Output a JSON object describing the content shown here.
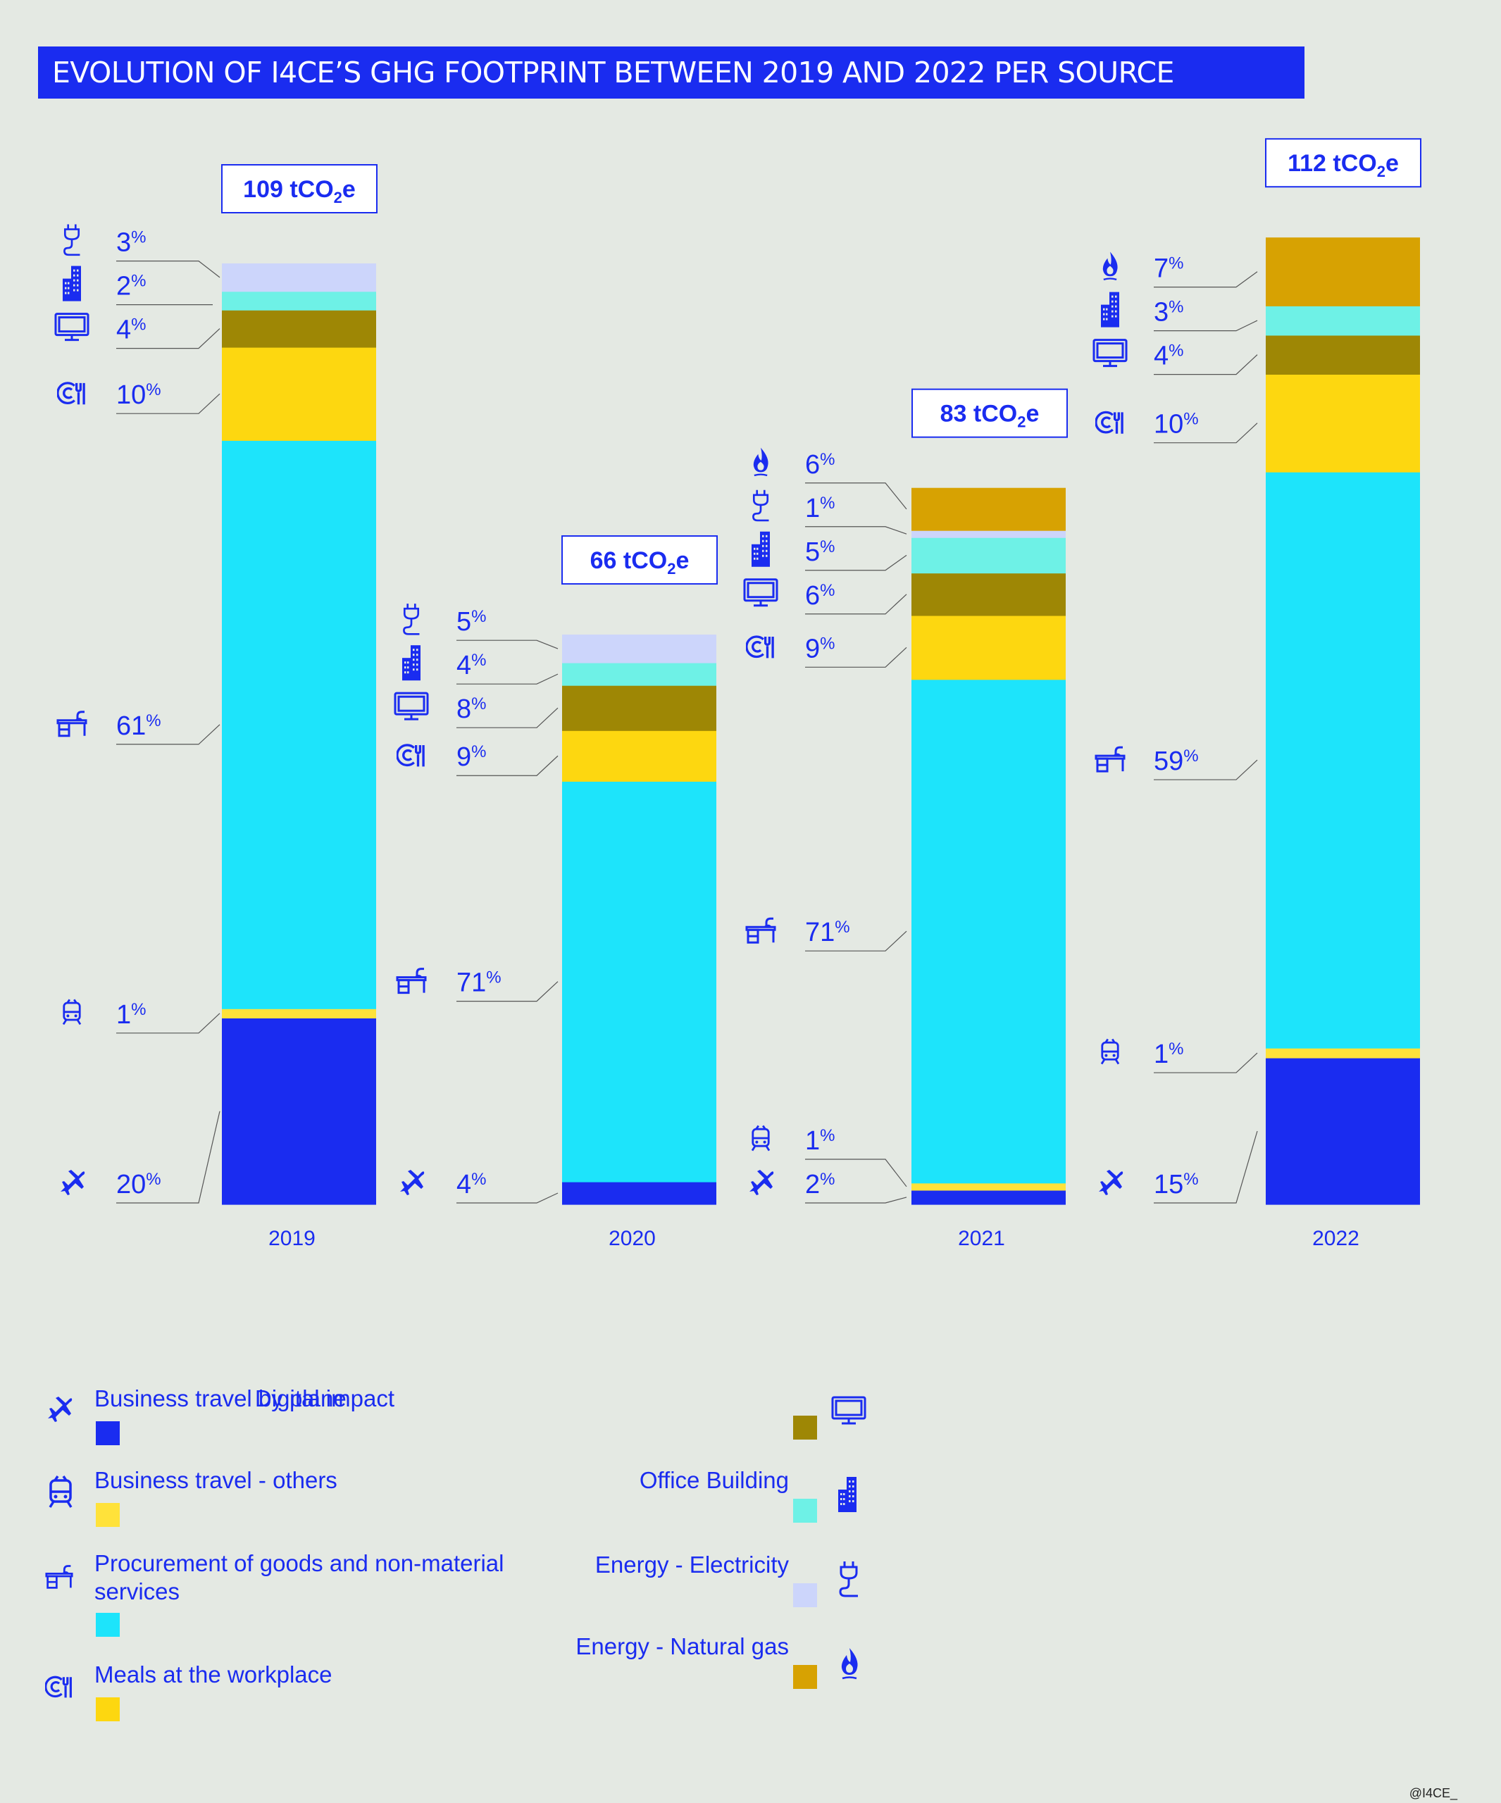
{
  "title": "EVOLUTION OF I4CE’S GHG FOOTPRINT BETWEEN 2019 AND 2022 PER SOURCE",
  "credit": "@I4CE_",
  "chart_data": {
    "type": "bar",
    "stacked": true,
    "unit": "%",
    "categories": [
      "2019",
      "2020",
      "2021",
      "2022"
    ],
    "totals": [
      {
        "prefix": "109 tCO",
        "sub": "2",
        "suffix": "e"
      },
      {
        "prefix": "66 tCO",
        "sub": "2",
        "suffix": "e"
      },
      {
        "prefix": "83 tCO",
        "sub": "2",
        "suffix": "e"
      },
      {
        "prefix": "112 tCO",
        "sub": "2",
        "suffix": "e"
      }
    ],
    "series": [
      {
        "name": "Business travel by plane",
        "color": "#1a2cf0",
        "icon": "plane-icon",
        "values": [
          20,
          4,
          2,
          15
        ]
      },
      {
        "name": "Business travel - others",
        "color": "#ffe23a",
        "icon": "train-icon",
        "values": [
          1,
          0,
          1,
          1
        ]
      },
      {
        "name": "Procurement of goods and non-material services",
        "color": "#1de4fb",
        "icon": "desk-icon",
        "values": [
          61,
          71,
          71,
          59
        ]
      },
      {
        "name": "Meals at the workplace",
        "color": "#fdd710",
        "icon": "meal-icon",
        "values": [
          10,
          9,
          9,
          10
        ]
      },
      {
        "name": "Digital impact",
        "color": "#9e8705",
        "icon": "monitor-icon",
        "values": [
          4,
          8,
          6,
          4
        ]
      },
      {
        "name": "Office Building",
        "color": "#6ef1e6",
        "icon": "building-icon",
        "values": [
          2,
          4,
          5,
          3
        ]
      },
      {
        "name": "Energy - Electricity",
        "color": "#ccd5fb",
        "icon": "plug-icon",
        "values": [
          3,
          5,
          1,
          0
        ]
      },
      {
        "name": "Energy - Natural gas",
        "color": "#d7a202",
        "icon": "flame-icon",
        "values": [
          0,
          0,
          6,
          7
        ]
      }
    ]
  }
}
